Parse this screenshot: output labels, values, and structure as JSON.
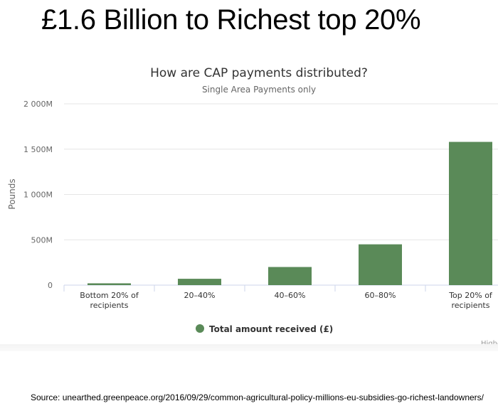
{
  "slide": {
    "headline": "£1.6 Billion to Richest top 20%",
    "source": "Source: unearthed.greenpeace.org/2016/09/29/common-agricultural-policy-millions-eu-subsidies-go-richest-landowners/"
  },
  "chart_data": {
    "type": "bar",
    "title": "How are CAP payments distributed?",
    "subtitle": "Single Area Payments only",
    "ylabel": "Pounds",
    "xlabel": "",
    "ylim": [
      0,
      2000
    ],
    "yticks": [
      {
        "value": 0,
        "label": "0"
      },
      {
        "value": 500,
        "label": "500M"
      },
      {
        "value": 1000,
        "label": "1 000M"
      },
      {
        "value": 1500,
        "label": "1 500M"
      },
      {
        "value": 2000,
        "label": "2 000M"
      }
    ],
    "categories": [
      [
        "Bottom 20% of",
        "recipients"
      ],
      [
        "20–40%"
      ],
      [
        "40–60%"
      ],
      [
        "60–80%"
      ],
      [
        "Top 20% of",
        "recipients"
      ]
    ],
    "series": [
      {
        "name": "Total amount received (£)",
        "values": [
          20,
          70,
          200,
          450,
          1580
        ]
      }
    ],
    "colors": {
      "bar": "#5a8a58",
      "grid": "#e6e6e6",
      "axis": "#ccd6eb",
      "text": "#333333",
      "muted": "#666666"
    },
    "grid": true,
    "legend": "bottom-center",
    "credits": "Highc"
  }
}
